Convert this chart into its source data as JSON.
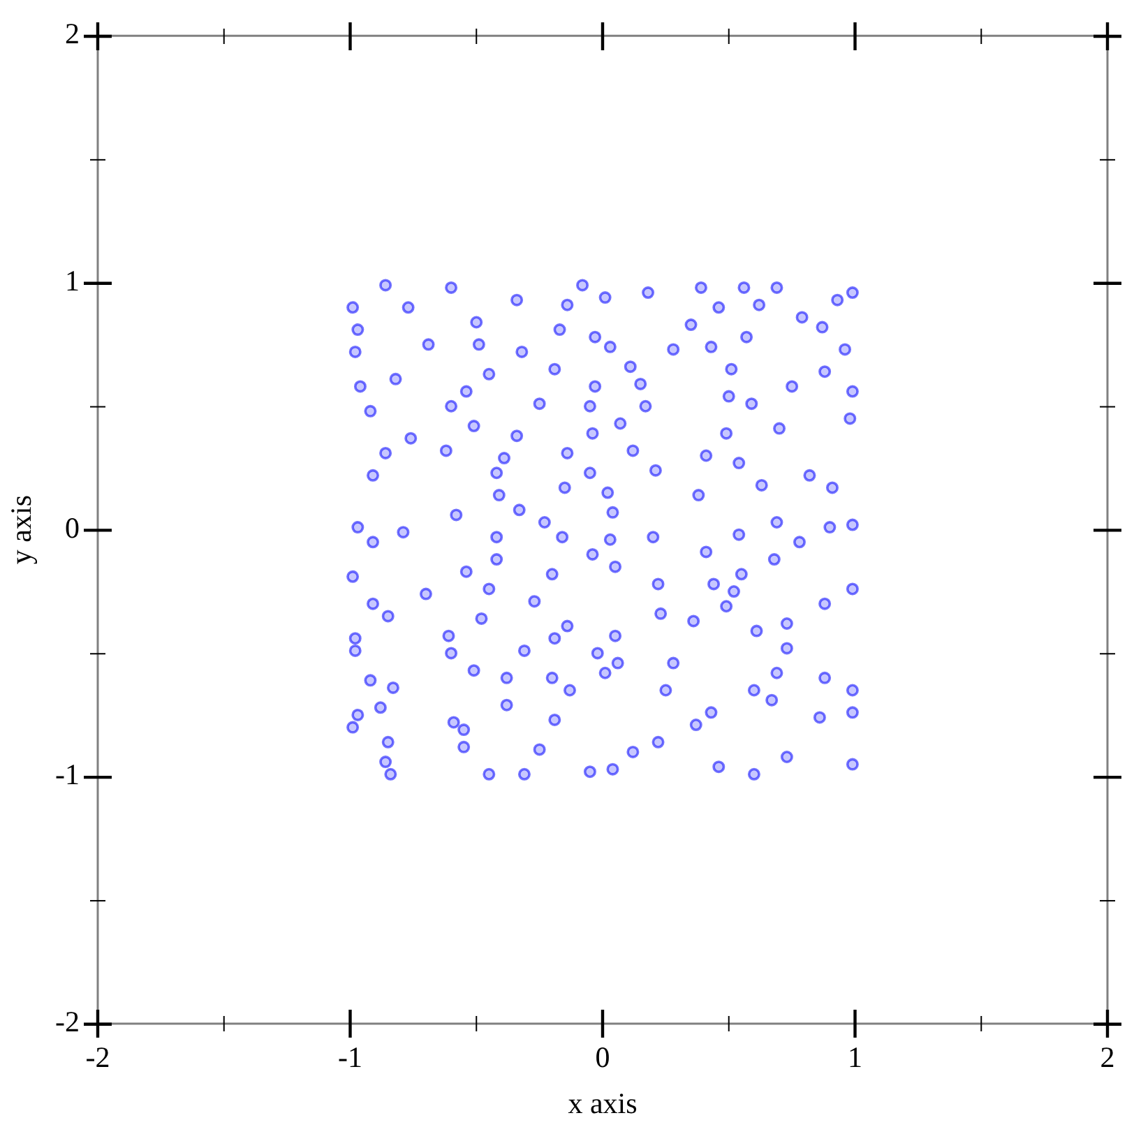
{
  "chart_data": {
    "type": "scatter",
    "xlabel": "x axis",
    "ylabel": "y axis",
    "xlim": [
      -2,
      2
    ],
    "ylim": [
      -2,
      2
    ],
    "xticks": [
      -2,
      {
        "value": -1.5,
        "label": null
      },
      -1,
      {
        "value": -0.5,
        "label": null
      },
      0,
      {
        "value": 0.5,
        "label": null
      },
      1,
      {
        "value": 1.5,
        "label": null
      },
      2
    ],
    "yticks": [
      -2,
      {
        "value": -1.5,
        "label": null
      },
      -1,
      {
        "value": -0.5,
        "label": null
      },
      0,
      {
        "value": 0.5,
        "label": null
      },
      1,
      {
        "value": 1.5,
        "label": null
      },
      2
    ],
    "marker": "circle",
    "color": "#0000ff",
    "x": [
      -0.86,
      -0.99,
      -0.6,
      -0.34,
      -0.77,
      -0.5,
      -0.97,
      -0.98,
      -0.69,
      -0.49,
      -0.32,
      -0.03,
      -0.82,
      -0.45,
      -0.96,
      -0.54,
      -0.03,
      -0.92,
      -0.6,
      -0.05,
      -0.51,
      -0.76,
      -0.34,
      -0.04,
      -0.62,
      -0.86,
      -0.39,
      -0.91,
      -0.42,
      -0.05,
      -0.41,
      -0.58,
      -0.33,
      -0.97,
      -0.08,
      -0.14,
      -0.17,
      -0.19,
      -0.25,
      -0.14,
      -0.15,
      -0.23,
      0.01,
      0.18,
      0.39,
      0.56,
      0.69,
      0.99,
      0.46,
      0.62,
      0.79,
      0.93,
      0.35,
      0.87,
      0.03,
      0.43,
      0.57,
      0.96,
      0.11,
      0.51,
      0.88,
      0.15,
      0.5,
      0.75,
      0.99,
      0.17,
      0.59,
      0.07,
      0.7,
      0.98,
      0.49,
      0.12,
      0.41,
      0.21,
      0.54,
      0.82,
      0.02,
      0.63,
      0.91,
      0.04,
      0.69,
      0.99,
      0.28,
      0.38,
      -0.79,
      -0.42,
      -0.91,
      -0.04,
      -0.42,
      -0.99,
      -0.54,
      -0.2,
      -0.45,
      -0.91,
      -0.27,
      -0.85,
      -0.48,
      -0.14,
      -0.98,
      -0.61,
      -0.19,
      -0.98,
      -0.6,
      -0.31,
      -0.02,
      -0.51,
      -0.92,
      -0.38,
      -0.2,
      -0.83,
      -0.13,
      -0.88,
      -0.38,
      -0.97,
      -0.59,
      -0.19,
      -0.99,
      -0.55,
      -0.85,
      -0.55,
      -0.25,
      -0.86,
      -0.84,
      -0.45,
      -0.31,
      -0.05,
      -0.16,
      -0.7,
      0.03,
      0.2,
      0.54,
      0.9,
      0.41,
      0.68,
      0.05,
      0.55,
      0.22,
      0.44,
      0.99,
      0.52,
      0.49,
      0.88,
      0.23,
      0.36,
      0.73,
      0.05,
      0.61,
      0.73,
      0.06,
      0.28,
      0.01,
      0.69,
      0.88,
      0.25,
      0.6,
      0.99,
      0.67,
      0.43,
      0.99,
      0.37,
      0.86,
      0.22,
      0.12,
      0.73,
      0.04,
      0.6,
      0.99,
      0.78,
      0.46
    ],
    "values": [
      0.99,
      0.9,
      0.98,
      0.93,
      0.9,
      0.84,
      0.81,
      0.72,
      0.75,
      0.75,
      0.72,
      0.78,
      0.61,
      0.63,
      0.58,
      0.56,
      0.58,
      0.48,
      0.5,
      0.5,
      0.42,
      0.37,
      0.38,
      0.39,
      0.32,
      0.31,
      0.29,
      0.22,
      0.23,
      0.23,
      0.14,
      0.06,
      0.08,
      0.01,
      0.99,
      0.91,
      0.81,
      0.65,
      0.51,
      0.31,
      0.17,
      0.03,
      0.94,
      0.96,
      0.98,
      0.98,
      0.98,
      0.96,
      0.9,
      0.91,
      0.86,
      0.93,
      0.83,
      0.82,
      0.74,
      0.74,
      0.78,
      0.73,
      0.66,
      0.65,
      0.64,
      0.59,
      0.54,
      0.58,
      0.56,
      0.5,
      0.51,
      0.43,
      0.41,
      0.45,
      0.39,
      0.32,
      0.3,
      0.24,
      0.27,
      0.22,
      0.15,
      0.18,
      0.17,
      0.07,
      0.03,
      0.02,
      0.73,
      0.14,
      -0.01,
      -0.03,
      -0.05,
      -0.1,
      -0.12,
      -0.19,
      -0.17,
      -0.18,
      -0.24,
      -0.3,
      -0.29,
      -0.35,
      -0.36,
      -0.39,
      -0.44,
      -0.43,
      -0.44,
      -0.49,
      -0.5,
      -0.49,
      -0.5,
      -0.57,
      -0.61,
      -0.6,
      -0.6,
      -0.64,
      -0.65,
      -0.72,
      -0.71,
      -0.75,
      -0.78,
      -0.77,
      -0.8,
      -0.81,
      -0.86,
      -0.88,
      -0.89,
      -0.94,
      -0.99,
      -0.99,
      -0.99,
      -0.98,
      -0.03,
      -0.26,
      -0.04,
      -0.03,
      -0.02,
      0.01,
      -0.09,
      -0.12,
      -0.15,
      -0.18,
      -0.22,
      -0.22,
      -0.24,
      -0.25,
      -0.31,
      -0.3,
      -0.34,
      -0.37,
      -0.38,
      -0.43,
      -0.41,
      -0.48,
      -0.54,
      -0.54,
      -0.58,
      -0.58,
      -0.6,
      -0.65,
      -0.65,
      -0.65,
      -0.69,
      -0.74,
      -0.74,
      -0.79,
      -0.76,
      -0.86,
      -0.9,
      -0.92,
      -0.97,
      -0.99,
      -0.95,
      -0.05,
      -0.96
    ]
  }
}
